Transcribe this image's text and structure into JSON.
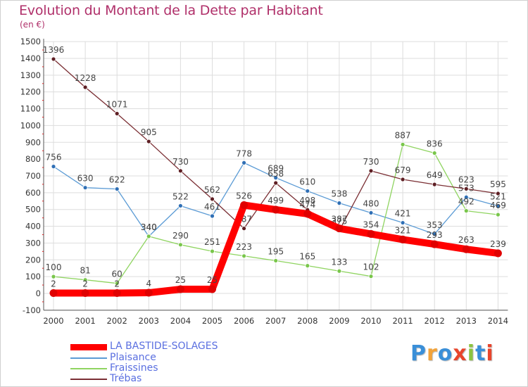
{
  "header": {
    "title": "Evolution du Montant de la Dette par Habitant",
    "unit": "(en €)"
  },
  "logo": {
    "text": "Proxiti",
    "colors": [
      "#3a8fd8",
      "#f2a33a",
      "#3a8fd8",
      "#e8452c",
      "#8bc43f",
      "#3a8fd8",
      "#e8452c"
    ]
  },
  "chart_data": {
    "type": "line",
    "title": "Evolution du Montant de la Dette par Habitant",
    "ylabel": "(en €)",
    "xlabel": "",
    "ylim": [
      -100,
      1500
    ],
    "yticks": [
      -100,
      0,
      100,
      200,
      300,
      400,
      500,
      600,
      700,
      800,
      900,
      1000,
      1100,
      1200,
      1300,
      1400,
      1500
    ],
    "x": [
      "2000",
      "2001",
      "2002",
      "2003",
      "2004",
      "2005",
      "2006",
      "2007",
      "2008",
      "2009",
      "2010",
      "2011",
      "2012",
      "2013",
      "2014"
    ],
    "grid": true,
    "legend_position": "bottom-left",
    "series": [
      {
        "name": "LA BASTIDE-SOLAGES",
        "color": "#ff0000",
        "marker": "#e00000",
        "width": 10,
        "values": [
          2,
          2,
          2,
          4,
          25,
          25,
          526,
          499,
          474,
          387,
          354,
          321,
          293,
          263,
          239
        ]
      },
      {
        "name": "Plaisance",
        "color": "#5b9bd5",
        "marker": "#2f6fb5",
        "width": 1.3,
        "values": [
          756,
          630,
          622,
          340,
          522,
          461,
          778,
          689,
          610,
          538,
          480,
          421,
          353,
          573,
          521
        ]
      },
      {
        "name": "Fraissines",
        "color": "#8fd460",
        "marker": "#79c64b",
        "width": 1.3,
        "values": [
          100,
          81,
          60,
          340,
          290,
          251,
          223,
          195,
          165,
          133,
          102,
          887,
          836,
          492,
          469
        ]
      },
      {
        "name": "Trébas",
        "color": "#7a2e33",
        "marker": "#5e1f24",
        "width": 1.3,
        "values": [
          1396,
          1228,
          1071,
          905,
          730,
          562,
          387,
          658,
          498,
          375,
          730,
          679,
          649,
          623,
          595
        ]
      }
    ]
  }
}
